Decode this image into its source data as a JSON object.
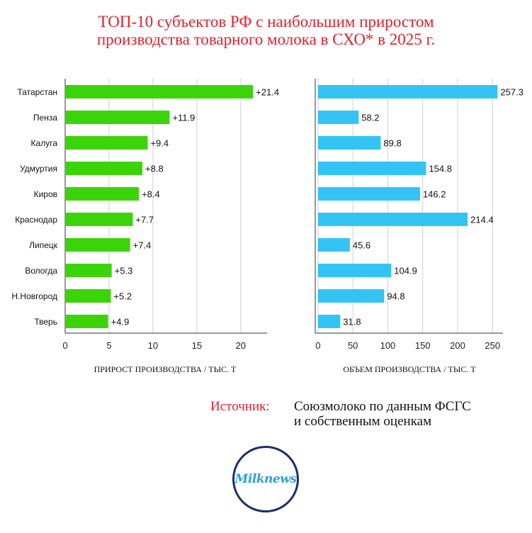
{
  "title": {
    "line1": "ТОП-10 субъектов РФ с наибольшим приростом",
    "line2": "производства товарного молока в СХО* в 2025 г."
  },
  "source": {
    "label": "Источник:",
    "line1": "Союзмолоко по данным ФСГС",
    "line2": "и собственным оценкам"
  },
  "logo": {
    "text": "Milknews"
  },
  "colors": {
    "title": "#e3202a",
    "left_bars": "#3bd409",
    "right_bars": "#33c4f5"
  },
  "chart_data": [
    {
      "type": "bar",
      "orientation": "horizontal",
      "categories": [
        "Татарстан",
        "Пенза",
        "Калуга",
        "Удмуртия",
        "Киров",
        "Краснодар",
        "Липецк",
        "Вологда",
        "Н.Новгород",
        "Тверь"
      ],
      "values": [
        21.4,
        11.9,
        9.4,
        8.8,
        8.4,
        7.7,
        7.4,
        5.3,
        5.2,
        4.9
      ],
      "data_labels": [
        "+21.4",
        "+11.9",
        "+9.4",
        "+8.8",
        "+8.4",
        "+7.7",
        "+7.4",
        "+5.3",
        "+5.2",
        "+4.9"
      ],
      "xlabel": "ПРИРОСТ ПРОИЗВОДСТВА / ТЫС. Т",
      "xlim": [
        0,
        23
      ],
      "xticks": [
        0,
        5,
        10,
        15,
        20
      ],
      "grid": "vertical",
      "color": "#3bd409"
    },
    {
      "type": "bar",
      "orientation": "horizontal",
      "categories": [
        "Татарстан",
        "Пенза",
        "Калуга",
        "Удмуртия",
        "Киров",
        "Краснодар",
        "Липецк",
        "Вологда",
        "Н.Новгород",
        "Тверь"
      ],
      "values": [
        257.3,
        58.2,
        89.8,
        154.8,
        146.2,
        214.4,
        45.6,
        104.9,
        94.8,
        31.8
      ],
      "data_labels": [
        "257.3",
        "58.2",
        "89.8",
        "154.8",
        "146.2",
        "214.4",
        "45.6",
        "104.9",
        "94.8",
        "31.8"
      ],
      "xlabel": "ОБЪЕМ ПРОИЗВОДСТВА / ТЫС. Т",
      "xlim": [
        -4,
        265
      ],
      "xticks": [
        0,
        50,
        100,
        150,
        200,
        250
      ],
      "grid": "vertical",
      "color": "#33c4f5"
    }
  ]
}
